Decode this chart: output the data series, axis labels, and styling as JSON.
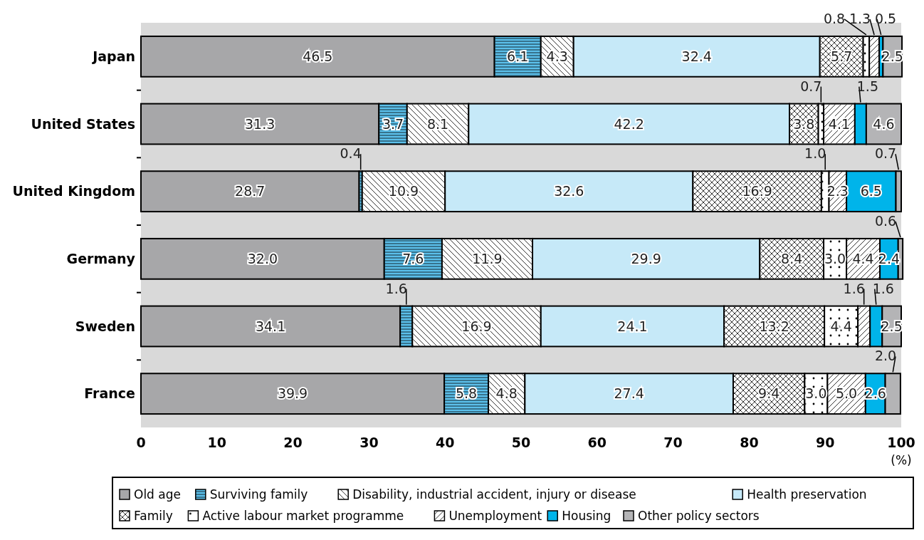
{
  "chart_data": {
    "type": "bar",
    "orientation": "horizontal",
    "stacked": true,
    "legend": "bottom",
    "xlabel": "(%)",
    "categories": [
      "Japan",
      "United States",
      "United Kingdom",
      "Germany",
      "Sweden",
      "France"
    ],
    "xlim": [
      0,
      100
    ],
    "xticks": [
      0,
      10,
      20,
      30,
      40,
      50,
      60,
      70,
      80,
      90,
      100
    ],
    "series": [
      {
        "name": "Old age",
        "color": "#a7a7a9",
        "values": [
          46.5,
          31.3,
          28.7,
          32.0,
          34.1,
          39.9
        ],
        "value_labels": [
          "46.5",
          "31.3",
          "28.7",
          "32.0",
          "34.1",
          "39.9"
        ]
      },
      {
        "name": "Surviving family",
        "color": "#5bc0eb",
        "values": [
          6.1,
          3.7,
          0.4,
          7.6,
          1.6,
          5.8
        ],
        "value_labels": [
          "6.1",
          "3.7",
          "0.4",
          "7.6",
          "1.6",
          "5.8"
        ]
      },
      {
        "name": "Disability, industrial accident, injury or disease",
        "color": "#ffffff",
        "values": [
          4.3,
          8.1,
          10.9,
          11.9,
          16.9,
          4.8
        ],
        "value_labels": [
          "4.3",
          "8.1",
          "10.9",
          "11.9",
          "16.9",
          "4.8"
        ]
      },
      {
        "name": "Health preservation",
        "color": "#c6e9f8",
        "values": [
          32.4,
          42.2,
          32.6,
          29.9,
          24.1,
          27.4
        ],
        "value_labels": [
          "32.4",
          "42.2",
          "32.6",
          "29.9",
          "24.1",
          "27.4"
        ]
      },
      {
        "name": "Family",
        "color": "#ffffff",
        "values": [
          5.7,
          3.8,
          16.9,
          8.4,
          13.2,
          9.4
        ],
        "value_labels": [
          "5.7",
          "3.8",
          "16.9",
          "8.4",
          "13.2",
          "9.4"
        ]
      },
      {
        "name": "Active labour market programme",
        "color": "#ffffff",
        "values": [
          0.8,
          0.7,
          1.0,
          3.0,
          4.4,
          3.0
        ],
        "value_labels": [
          "0.8",
          "0.7",
          "1.0",
          "3.0",
          "4.4",
          "3.0"
        ]
      },
      {
        "name": "Unemployment",
        "color": "#ffffff",
        "values": [
          1.3,
          4.1,
          2.3,
          4.4,
          1.6,
          5.0
        ],
        "value_labels": [
          "1.3",
          "4.1",
          "2.3",
          "4.4",
          "1.6",
          "5.0"
        ]
      },
      {
        "name": "Housing",
        "color": "#00b4ea",
        "values": [
          0.5,
          1.5,
          6.5,
          2.4,
          1.6,
          2.6
        ],
        "value_labels": [
          "0.5",
          "1.5",
          "6.5",
          "2.4",
          "1.6",
          "2.6"
        ]
      },
      {
        "name": "Other policy sectors",
        "color": "#b4b4b6",
        "values": [
          2.5,
          4.6,
          0.7,
          0.6,
          2.5,
          2.0
        ],
        "value_labels": [
          "2.5",
          "4.6",
          "0.7",
          "0.6",
          "2.5",
          "2.0"
        ]
      }
    ]
  }
}
